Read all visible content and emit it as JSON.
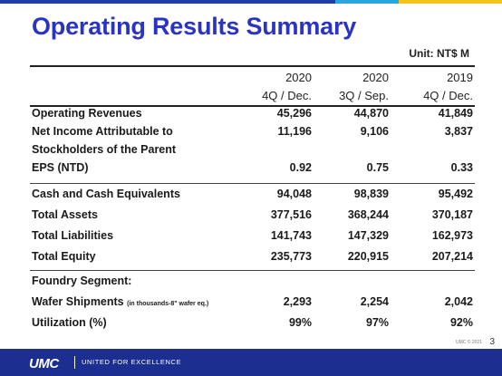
{
  "slide": {
    "title": "Operating Results Summary",
    "unit": "Unit: NT$ M",
    "page_number": "3",
    "copyright": "UMC © 2021"
  },
  "columns": [
    {
      "year": "2020",
      "quarter": "4Q / Dec."
    },
    {
      "year": "2020",
      "quarter": "3Q / Sep."
    },
    {
      "year": "2019",
      "quarter": "4Q / Dec."
    }
  ],
  "rows": {
    "operating_revenues": {
      "label": "Operating Revenues",
      "values": [
        "45,296",
        "44,870",
        "41,849"
      ]
    },
    "net_income": {
      "label_line1": "Net Income Attributable to",
      "label_line2": "Stockholders of the Parent",
      "values": [
        "11,196",
        "9,106",
        "3,837"
      ]
    },
    "eps": {
      "label": "EPS (NTD)",
      "values": [
        "0.92",
        "0.75",
        "0.33"
      ]
    },
    "cash": {
      "label": "Cash and Cash Equivalents",
      "values": [
        "94,048",
        "98,839",
        "95,492"
      ]
    },
    "total_assets": {
      "label": "Total Assets",
      "values": [
        "377,516",
        "368,244",
        "370,187"
      ]
    },
    "total_liabilities": {
      "label": "Total Liabilities",
      "values": [
        "141,743",
        "147,329",
        "162,973"
      ]
    },
    "total_equity": {
      "label": "Total Equity",
      "values": [
        "235,773",
        "220,915",
        "207,214"
      ]
    },
    "foundry_segment": {
      "label": "Foundry Segment:"
    },
    "wafer_shipments": {
      "label": "Wafer Shipments",
      "note": "(in thousands-8\" wafer eq.)",
      "values": [
        "2,293",
        "2,254",
        "2,042"
      ]
    },
    "utilization": {
      "label": "Utilization (%)",
      "values": [
        "99%",
        "97%",
        "92%"
      ]
    }
  },
  "footer": {
    "logo": "UMC",
    "tagline": "UNITED FOR EXCELLENCE",
    "colors": {
      "background": "#1c2e8f",
      "title": "#2a34c4"
    }
  }
}
